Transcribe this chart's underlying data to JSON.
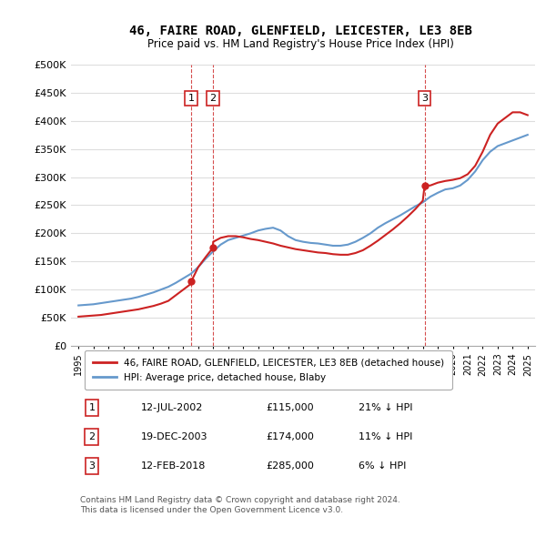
{
  "title": "46, FAIRE ROAD, GLENFIELD, LEICESTER, LE3 8EB",
  "subtitle": "Price paid vs. HM Land Registry's House Price Index (HPI)",
  "ylabel_values": [
    "£0",
    "£50K",
    "£100K",
    "£150K",
    "£200K",
    "£250K",
    "£300K",
    "£350K",
    "£400K",
    "£450K",
    "£500K"
  ],
  "yticks": [
    0,
    50000,
    100000,
    150000,
    200000,
    250000,
    300000,
    350000,
    400000,
    450000,
    500000
  ],
  "xlim_start": 1994.5,
  "xlim_end": 2025.5,
  "ylim": [
    0,
    500000
  ],
  "hpi_color": "#6699cc",
  "price_color": "#cc2222",
  "vline_color": "#cc2222",
  "marker_color": "#cc2222",
  "transactions": [
    {
      "date": 2002.54,
      "price": 115000,
      "label": "1"
    },
    {
      "date": 2003.97,
      "price": 174000,
      "label": "2"
    },
    {
      "date": 2018.12,
      "price": 285000,
      "label": "3"
    }
  ],
  "hpi_years": [
    1995,
    1995.5,
    1996,
    1996.5,
    1997,
    1997.5,
    1998,
    1998.5,
    1999,
    1999.5,
    2000,
    2000.5,
    2001,
    2001.5,
    2002,
    2002.5,
    2003,
    2003.5,
    2004,
    2004.5,
    2005,
    2005.5,
    2006,
    2006.5,
    2007,
    2007.5,
    2008,
    2008.5,
    2009,
    2009.5,
    2010,
    2010.5,
    2011,
    2011.5,
    2012,
    2012.5,
    2013,
    2013.5,
    2014,
    2014.5,
    2015,
    2015.5,
    2016,
    2016.5,
    2017,
    2017.5,
    2018,
    2018.5,
    2019,
    2019.5,
    2020,
    2020.5,
    2021,
    2021.5,
    2022,
    2022.5,
    2023,
    2023.5,
    2024,
    2024.5,
    2025
  ],
  "hpi_values": [
    72000,
    73000,
    74000,
    76000,
    78000,
    80000,
    82000,
    84000,
    87000,
    91000,
    95000,
    100000,
    105000,
    112000,
    120000,
    128000,
    140000,
    155000,
    168000,
    180000,
    188000,
    192000,
    196000,
    200000,
    205000,
    208000,
    210000,
    205000,
    195000,
    188000,
    185000,
    183000,
    182000,
    180000,
    178000,
    178000,
    180000,
    185000,
    192000,
    200000,
    210000,
    218000,
    225000,
    232000,
    240000,
    248000,
    255000,
    265000,
    272000,
    278000,
    280000,
    285000,
    295000,
    310000,
    330000,
    345000,
    355000,
    360000,
    365000,
    370000,
    375000
  ],
  "price_years": [
    1995,
    1995.5,
    1996,
    1996.5,
    1997,
    1997.5,
    1998,
    1998.5,
    1999,
    1999.5,
    2000,
    2000.5,
    2001,
    2001.5,
    2002,
    2002.5,
    2002.54,
    2003,
    2003.5,
    2003.97,
    2004,
    2004.5,
    2005,
    2005.5,
    2006,
    2006.5,
    2007,
    2007.5,
    2008,
    2008.5,
    2009,
    2009.5,
    2010,
    2010.5,
    2011,
    2011.5,
    2012,
    2012.5,
    2013,
    2013.5,
    2014,
    2014.5,
    2015,
    2015.5,
    2016,
    2016.5,
    2017,
    2017.5,
    2018,
    2018.12,
    2018.5,
    2019,
    2019.5,
    2020,
    2020.5,
    2021,
    2021.5,
    2022,
    2022.5,
    2023,
    2023.5,
    2024,
    2024.5,
    2025
  ],
  "price_values": [
    52000,
    53000,
    54000,
    55000,
    57000,
    59000,
    61000,
    63000,
    65000,
    68000,
    71000,
    75000,
    80000,
    90000,
    100000,
    110000,
    115000,
    140000,
    158000,
    174000,
    185000,
    192000,
    195000,
    195000,
    193000,
    190000,
    188000,
    185000,
    182000,
    178000,
    175000,
    172000,
    170000,
    168000,
    166000,
    165000,
    163000,
    162000,
    162000,
    165000,
    170000,
    178000,
    187000,
    197000,
    207000,
    218000,
    230000,
    243000,
    258000,
    285000,
    285000,
    290000,
    293000,
    295000,
    298000,
    305000,
    320000,
    345000,
    375000,
    395000,
    405000,
    415000,
    415000,
    410000
  ],
  "xtick_labels": [
    "1995",
    "1996",
    "1997",
    "1998",
    "1999",
    "2000",
    "2001",
    "2002",
    "2003",
    "2004",
    "2005",
    "2006",
    "2007",
    "2008",
    "2009",
    "2010",
    "2011",
    "2012",
    "2013",
    "2014",
    "2015",
    "2016",
    "2017",
    "2018",
    "2019",
    "2020",
    "2021",
    "2022",
    "2023",
    "2024",
    "2025"
  ],
  "xtick_positions": [
    1995,
    1996,
    1997,
    1998,
    1999,
    2000,
    2001,
    2002,
    2003,
    2004,
    2005,
    2006,
    2007,
    2008,
    2009,
    2010,
    2011,
    2012,
    2013,
    2014,
    2015,
    2016,
    2017,
    2018,
    2019,
    2020,
    2021,
    2022,
    2023,
    2024,
    2025
  ],
  "legend_entries": [
    {
      "label": "46, FAIRE ROAD, GLENFIELD, LEICESTER, LE3 8EB (detached house)",
      "color": "#cc2222"
    },
    {
      "label": "HPI: Average price, detached house, Blaby",
      "color": "#6699cc"
    }
  ],
  "table_rows": [
    {
      "num": "1",
      "date": "12-JUL-2002",
      "price": "£115,000",
      "hpi": "21% ↓ HPI"
    },
    {
      "num": "2",
      "date": "19-DEC-2003",
      "price": "£174,000",
      "hpi": "11% ↓ HPI"
    },
    {
      "num": "3",
      "date": "12-FEB-2018",
      "price": "£285,000",
      "hpi": "6% ↓ HPI"
    }
  ],
  "footnote": "Contains HM Land Registry data © Crown copyright and database right 2024.\nThis data is licensed under the Open Government Licence v3.0.",
  "bg_color": "#ffffff",
  "grid_color": "#dddddd",
  "box_color": "#cc2222"
}
